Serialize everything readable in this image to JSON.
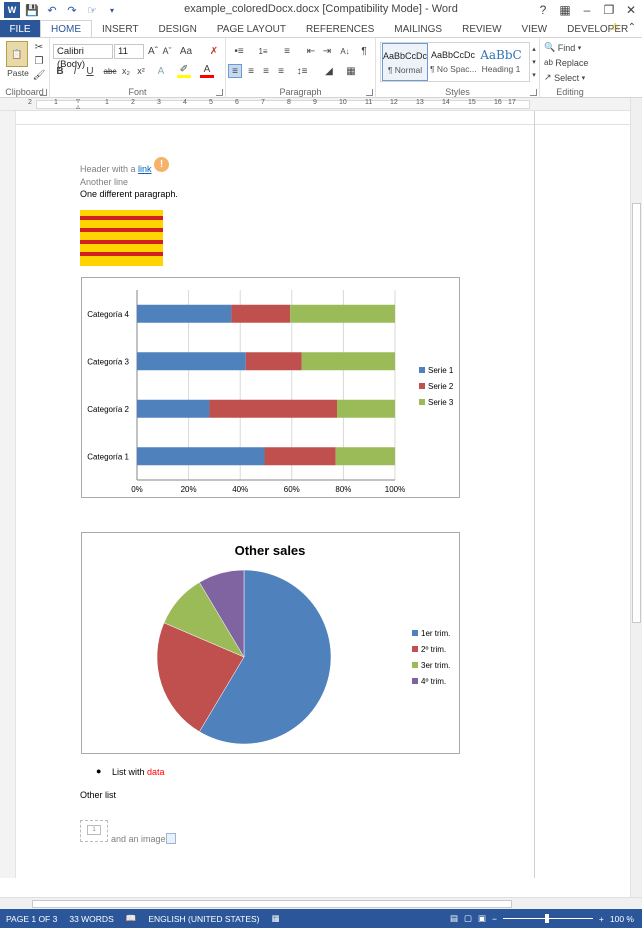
{
  "window": {
    "title": "example_coloredDocx.docx [Compatibility Mode] - Word",
    "controls": {
      "help": "?",
      "minimize": "–",
      "restore": "❐",
      "close": "✕"
    }
  },
  "tabs": {
    "file": "FILE",
    "items": [
      "HOME",
      "INSERT",
      "DESIGN",
      "PAGE LAYOUT",
      "REFERENCES",
      "MAILINGS",
      "REVIEW",
      "VIEW",
      "DEVELOPER"
    ],
    "active": "HOME"
  },
  "ribbon": {
    "clipboard": {
      "label": "Clipboard",
      "paste": "Paste"
    },
    "font": {
      "label": "Font",
      "font_name": "Calibri (Body)",
      "font_size": "11",
      "bold": "B",
      "italic": "I",
      "underline": "U",
      "strike": "abc",
      "subscript": "x₂",
      "superscript": "x²"
    },
    "paragraph": {
      "label": "Paragraph",
      "pilcrow": "¶"
    },
    "styles": {
      "label": "Styles",
      "items": [
        {
          "preview": "AaBbCcDc",
          "name": "¶ Normal"
        },
        {
          "preview": "AaBbCcDc",
          "name": "¶ No Spac..."
        },
        {
          "preview": "AaBbC",
          "name": "Heading 1"
        }
      ]
    },
    "editing": {
      "label": "Editing",
      "find": "Find",
      "replace": "Replace",
      "select": "Select"
    }
  },
  "ruler": {
    "numbers": [
      "2",
      "1",
      "1",
      "2",
      "3",
      "4",
      "5",
      "6",
      "7",
      "8",
      "9",
      "10",
      "11",
      "12",
      "13",
      "14",
      "15",
      "16",
      "17"
    ]
  },
  "document": {
    "header_text": "Header with a ",
    "header_link": "link",
    "line2": "Another line",
    "line3": "One different paragraph.",
    "list_item_prefix": "List with ",
    "list_item_red": "data",
    "other_list": "Other list",
    "image_caption": "and an image",
    "placeholder_num": "1"
  },
  "chart_data": [
    {
      "type": "bar",
      "orientation": "horizontal",
      "stacked": "percent",
      "categories": [
        "Categoría 1",
        "Categoría 2",
        "Categoría 3",
        "Categoría 4"
      ],
      "series": [
        {
          "name": "Serie 1",
          "values": [
            4.3,
            2.5,
            3.5,
            4.5
          ],
          "color": "#4f81bd"
        },
        {
          "name": "Serie 2",
          "values": [
            2.4,
            4.4,
            1.8,
            2.8
          ],
          "color": "#c0504d"
        },
        {
          "name": "Serie 3",
          "values": [
            2,
            2,
            3,
            5
          ],
          "color": "#9bbb59"
        }
      ],
      "xticks": [
        "0%",
        "20%",
        "40%",
        "60%",
        "80%",
        "100%"
      ],
      "legend_position": "right",
      "grid": true
    },
    {
      "type": "pie",
      "title": "Other sales",
      "labels": [
        "1er trim.",
        "2º trim.",
        "3er trim.",
        "4º trim."
      ],
      "values": [
        8.2,
        3.2,
        1.4,
        1.2
      ],
      "colors": [
        "#4f81bd",
        "#c0504d",
        "#9bbb59",
        "#8064a2"
      ],
      "legend_position": "right"
    }
  ],
  "status": {
    "page": "PAGE 1 OF 3",
    "words": "33 WORDS",
    "language": "ENGLISH (UNITED STATES)",
    "zoom": "100 %"
  }
}
